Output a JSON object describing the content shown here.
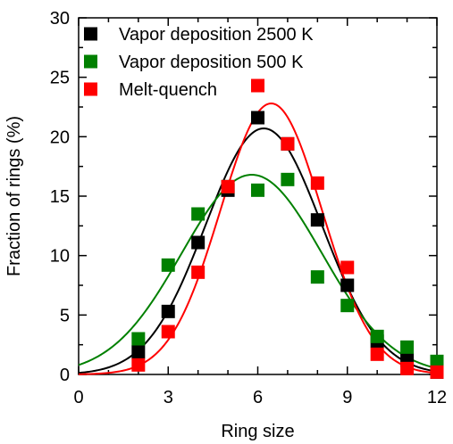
{
  "chart_data": {
    "type": "scatter",
    "xlabel": "Ring size",
    "ylabel": "Fraction of rings (%)",
    "xlim": [
      0,
      12
    ],
    "ylim": [
      0,
      30
    ],
    "x_ticks": [
      0,
      3,
      6,
      9,
      12
    ],
    "y_ticks": [
      0,
      5,
      10,
      15,
      20,
      25,
      30
    ],
    "grid": false,
    "legend_position": "top-left",
    "series": [
      {
        "name": "Vapor deposition 2500 K",
        "color": "#000000",
        "x": [
          2,
          3,
          4,
          5,
          6,
          7,
          8,
          9,
          10,
          11,
          12
        ],
        "values": [
          1.9,
          5.3,
          11.1,
          15.5,
          21.6,
          19.4,
          13.0,
          7.5,
          2.8,
          1.2,
          0.2
        ],
        "fit": {
          "peak": 20.7,
          "mean": 6.2,
          "sigma": 1.95,
          "mode": "gaussian"
        }
      },
      {
        "name": "Vapor deposition 500 K",
        "color": "#008000",
        "x": [
          2,
          3,
          4,
          5,
          6,
          7,
          8,
          9,
          10,
          11,
          12
        ],
        "values": [
          3.0,
          9.2,
          13.5,
          15.8,
          15.5,
          16.4,
          8.2,
          5.8,
          3.2,
          2.3,
          1.1
        ],
        "fit": {
          "peak": 16.8,
          "mean": 5.8,
          "sigma": 2.35,
          "mode": "gaussian"
        }
      },
      {
        "name": "Melt-quench",
        "color": "#ff0000",
        "x": [
          2,
          3,
          4,
          5,
          6,
          7,
          8,
          9,
          10,
          11,
          12
        ],
        "values": [
          0.8,
          3.6,
          8.6,
          15.8,
          24.3,
          19.4,
          16.1,
          9.0,
          1.7,
          0.5,
          0.2
        ],
        "fit": {
          "peak": 22.8,
          "mean": 6.45,
          "sigma": 1.7,
          "mode": "gaussian"
        }
      }
    ]
  }
}
